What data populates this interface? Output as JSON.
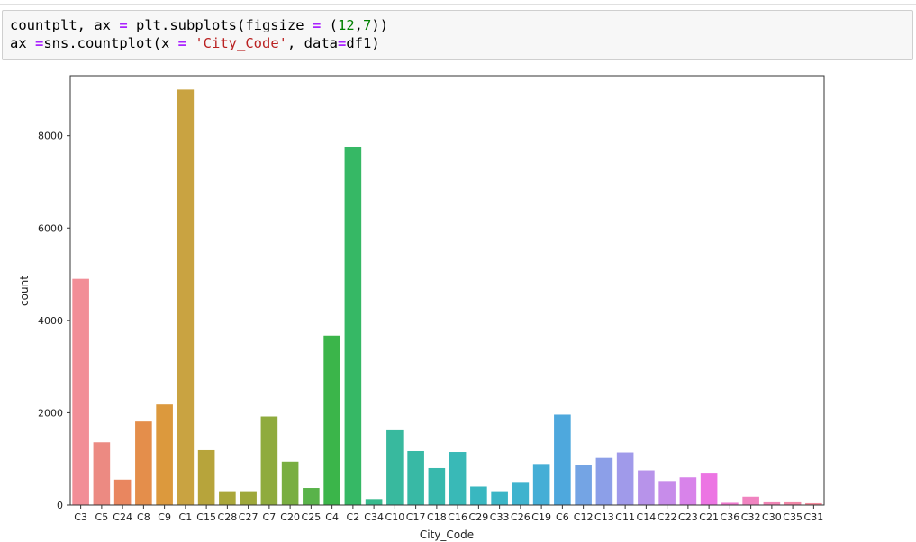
{
  "code": {
    "line1": {
      "a": "countplt, ax ",
      "op1": "=",
      "b": " plt.subplots(figsize ",
      "op2": "=",
      "c": " (",
      "n1": "12",
      "d": ",",
      "n2": "7",
      "e": "))"
    },
    "line2": {
      "a": "ax ",
      "op1": "=",
      "b": "sns.countplot(x ",
      "op2": "=",
      "c": " ",
      "s1": "'City_Code'",
      "d": ", data",
      "op3": "=",
      "e": "df1)"
    }
  },
  "chart_data": {
    "type": "bar",
    "xlabel": "City_Code",
    "ylabel": "count",
    "ylim": [
      0,
      9300
    ],
    "yticks": [
      0,
      2000,
      4000,
      6000,
      8000
    ],
    "categories": [
      "C3",
      "C5",
      "C24",
      "C8",
      "C9",
      "C1",
      "C15",
      "C28",
      "C27",
      "C7",
      "C20",
      "C25",
      "C4",
      "C2",
      "C34",
      "C10",
      "C17",
      "C18",
      "C16",
      "C29",
      "C33",
      "C26",
      "C19",
      "C6",
      "C12",
      "C13",
      "C11",
      "C14",
      "C22",
      "C23",
      "C21",
      "C36",
      "C32",
      "C30",
      "C35",
      "C31"
    ],
    "values": [
      4900,
      1360,
      550,
      1810,
      2180,
      9000,
      1190,
      300,
      300,
      1920,
      940,
      370,
      3670,
      7760,
      130,
      1620,
      1170,
      800,
      1150,
      400,
      300,
      500,
      890,
      1960,
      870,
      1020,
      1140,
      750,
      520,
      600,
      700,
      50,
      180,
      60,
      60,
      40
    ],
    "colors": [
      "#f28e97",
      "#ec8a82",
      "#e9865f",
      "#e48e4b",
      "#dc993d",
      "#c9a341",
      "#b7a43b",
      "#aaa73a",
      "#9ea83a",
      "#8fab3d",
      "#79ae41",
      "#59b34a",
      "#3bb54a",
      "#36b865",
      "#37ba8d",
      "#38b99e",
      "#38b9a5",
      "#38b9ad",
      "#39b9b7",
      "#39b7c0",
      "#3bb5c6",
      "#3fb3ce",
      "#45aed6",
      "#4ea8dd",
      "#74a4e4",
      "#8c9fe8",
      "#a09aea",
      "#b793ea",
      "#c78cea",
      "#d883ea",
      "#ec75e3",
      "#f07cd0",
      "#f083c0",
      "#f185b6",
      "#f287a8",
      "#f48d9e"
    ]
  }
}
